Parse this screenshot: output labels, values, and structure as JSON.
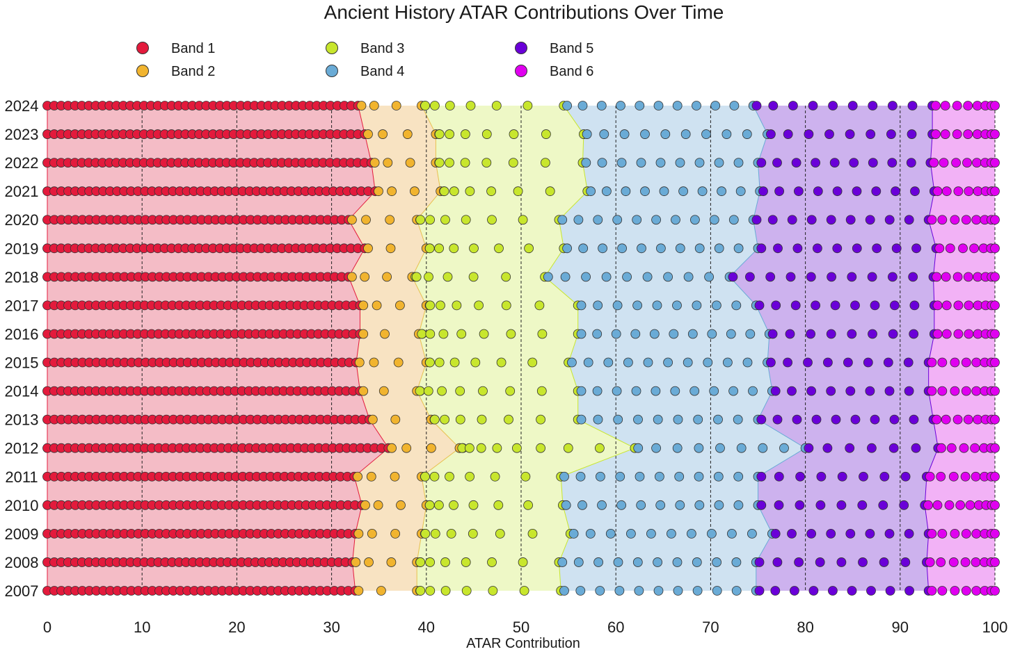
{
  "chart_data": {
    "type": "scatter",
    "title": "Ancient History ATAR Contributions Over Time",
    "xlabel": "ATAR Contribution",
    "ylabel": "",
    "xlim": [
      0,
      100
    ],
    "x_ticks": [
      "0",
      "10",
      "20",
      "30",
      "40",
      "50",
      "60",
      "70",
      "80",
      "90",
      "100"
    ],
    "vertical_gridlines": [
      10,
      20,
      30,
      40,
      50,
      60,
      70,
      80,
      90,
      100
    ],
    "legend_position": "top-left, 3 columns",
    "years": [
      "2007",
      "2008",
      "2009",
      "2010",
      "2011",
      "2012",
      "2013",
      "2014",
      "2015",
      "2016",
      "2017",
      "2018",
      "2019",
      "2020",
      "2021",
      "2022",
      "2023",
      "2024"
    ],
    "bands": [
      {
        "name": "Band 1",
        "color": "#e31a3c",
        "fill": "#f4bcc6",
        "stroke": "#e31a3c"
      },
      {
        "name": "Band 2",
        "color": "#f1b42f",
        "fill": "#f8e3c2",
        "stroke": "#e8c050"
      },
      {
        "name": "Band 3",
        "color": "#c8e62d",
        "fill": "#eef8c6",
        "stroke": "#c8e62d"
      },
      {
        "name": "Band 4",
        "color": "#6aabd6",
        "fill": "#cfe2f1",
        "stroke": "#6aabd6"
      },
      {
        "name": "Band 5",
        "color": "#6a00d8",
        "fill": "#cdb2ee",
        "stroke": "#6a00d8"
      },
      {
        "name": "Band 6",
        "color": "#e000f0",
        "fill": "#f2b2f6",
        "stroke": "#e000f0"
      }
    ],
    "band_cutoffs_by_year": {
      "2007": [
        32.5,
        39.0,
        54.2,
        74.8,
        93.0
      ],
      "2008": [
        32.2,
        39.0,
        54.0,
        74.8,
        92.8
      ],
      "2009": [
        32.5,
        39.5,
        55.2,
        76.5,
        93.0
      ],
      "2010": [
        33.2,
        40.0,
        54.4,
        75.0,
        92.6
      ],
      "2011": [
        32.4,
        39.5,
        54.2,
        75.0,
        92.8
      ],
      "2012": [
        36.0,
        43.5,
        62.0,
        80.0,
        94.0
      ],
      "2013": [
        34.0,
        40.5,
        56.0,
        75.0,
        93.5
      ],
      "2014": [
        33.0,
        39.0,
        56.0,
        76.5,
        93.0
      ],
      "2015": [
        32.6,
        40.0,
        55.0,
        76.0,
        93.0
      ],
      "2016": [
        33.0,
        39.2,
        56.0,
        76.2,
        93.6
      ],
      "2017": [
        33.0,
        40.0,
        56.0,
        74.8,
        93.6
      ],
      "2018": [
        31.8,
        38.5,
        52.5,
        72.0,
        93.5
      ],
      "2019": [
        33.5,
        40.0,
        54.5,
        75.0,
        93.8
      ],
      "2020": [
        31.8,
        39.0,
        54.0,
        74.5,
        93.0
      ],
      "2021": [
        34.6,
        41.5,
        57.0,
        75.2,
        93.6
      ],
      "2022": [
        34.2,
        41.0,
        56.5,
        75.0,
        93.2
      ],
      "2023": [
        33.5,
        41.0,
        56.6,
        76.0,
        93.4
      ],
      "2024": [
        32.8,
        39.5,
        54.5,
        74.5,
        93.4
      ]
    },
    "point_spacing_note": "points are densely packed near 0 and 100 and sparser in the middle of each band"
  },
  "colors": {
    "background": "#ffffff",
    "text": "#1a1a1a",
    "gridline": "#222222",
    "marker_edge": "#333333"
  }
}
